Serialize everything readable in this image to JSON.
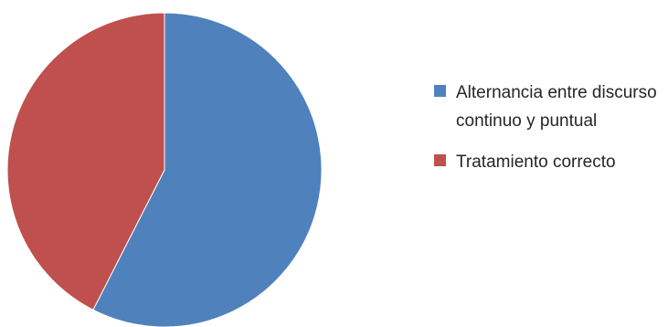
{
  "chart_data": {
    "type": "pie",
    "title": "",
    "categories": [
      "Alternancia entre discurso continuo y puntual",
      "Tratamiento correcto"
    ],
    "values": [
      57.5,
      42.5
    ],
    "colors": [
      "#4f81bd",
      "#c0504d"
    ],
    "legend_position": "right",
    "slices": [
      {
        "label": "Alternancia entre discurso continuo y puntual",
        "value": 57.5,
        "color": "#4f81bd"
      },
      {
        "label": "Tratamiento correcto",
        "value": 42.5,
        "color": "#c0504d"
      }
    ]
  },
  "legend": {
    "items": [
      {
        "label": "Alternancia entre discurso continuo y puntual",
        "color": "#4f81bd"
      },
      {
        "label": "Tratamiento correcto",
        "color": "#c0504d"
      }
    ]
  }
}
